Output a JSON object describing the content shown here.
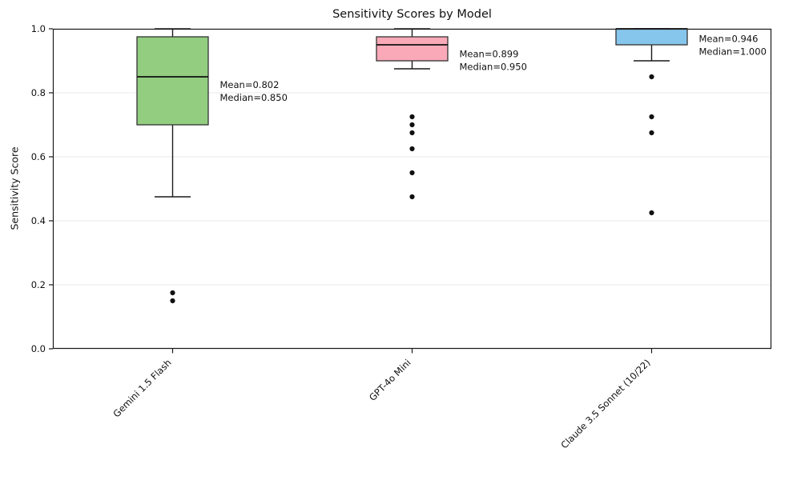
{
  "chart_data": {
    "type": "box",
    "title": "Sensitivity Scores by Model",
    "xlabel": "",
    "ylabel": "Sensitivity Score",
    "ylim": [
      0.0,
      1.0
    ],
    "ytick_labels": [
      "0.0",
      "0.2",
      "0.4",
      "0.6",
      "0.8",
      "1.0"
    ],
    "ytick_values": [
      0.0,
      0.2,
      0.4,
      0.6,
      0.8,
      1.0
    ],
    "grid": "horizontal",
    "grid_color": "#e8e8e8",
    "text_color": "#111111",
    "spine_color": "#1a1a1a",
    "outlier_color": "#111111",
    "categories": [
      "Gemini 1.5 Flash",
      "GPT-4o Mini",
      "Claude 3.5 Sonnet (10/22)"
    ],
    "series": [
      {
        "name": "Gemini 1.5 Flash",
        "box_color": "#92cd80",
        "whisker_low": 0.475,
        "q1": 0.7,
        "median": 0.85,
        "q3": 0.975,
        "whisker_high": 1.0,
        "outliers": [
          0.175,
          0.15
        ],
        "mean": 0.802,
        "annotation_lines": [
          "Mean=0.802",
          "Median=0.850"
        ]
      },
      {
        "name": "GPT-4o Mini",
        "box_color": "#f9a9b8",
        "whisker_low": 0.875,
        "q1": 0.9,
        "median": 0.95,
        "q3": 0.975,
        "whisker_high": 1.0,
        "outliers": [
          0.725,
          0.7,
          0.675,
          0.625,
          0.55,
          0.475
        ],
        "mean": 0.899,
        "annotation_lines": [
          "Mean=0.899",
          "Median=0.950"
        ]
      },
      {
        "name": "Claude 3.5 Sonnet (10/22)",
        "box_color": "#86c5ec",
        "whisker_low": 0.9,
        "q1": 0.95,
        "median": 1.0,
        "q3": 1.0,
        "whisker_high": 1.0,
        "outliers": [
          0.85,
          0.725,
          0.675,
          0.425
        ],
        "mean": 0.946,
        "annotation_lines": [
          "Mean=0.946",
          "Median=1.000"
        ]
      }
    ]
  }
}
